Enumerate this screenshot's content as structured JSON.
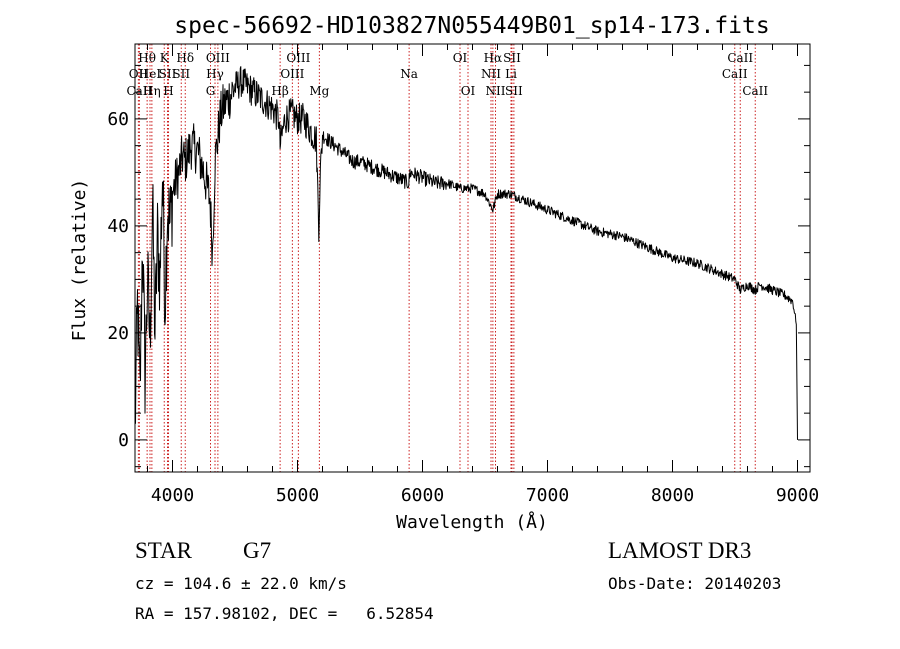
{
  "chart_data": {
    "type": "line",
    "title": "spec-56692-HD103827N055449B01_sp14-173.fits",
    "xlabel": "Wavelength (Å)",
    "ylabel": "Flux (relative)",
    "xlim": [
      3700,
      9100
    ],
    "ylim": [
      -6,
      74
    ],
    "xticks": [
      4000,
      5000,
      6000,
      7000,
      8000,
      9000
    ],
    "yticks": [
      0,
      20,
      40,
      60
    ],
    "x_minor_step": 200,
    "y_minor_step": 5,
    "grid": false,
    "colors": {
      "spectrum": "#000000",
      "lines": "#cc2222",
      "axes": "#000000"
    },
    "spectrum": {
      "name": "flux",
      "x": [
        3700,
        3720,
        3740,
        3760,
        3780,
        3800,
        3820,
        3840,
        3860,
        3880,
        3900,
        3920,
        3940,
        3960,
        3980,
        4000,
        4020,
        4050,
        4080,
        4100,
        4150,
        4200,
        4250,
        4300,
        4320,
        4340,
        4360,
        4380,
        4400,
        4450,
        4500,
        4550,
        4600,
        4650,
        4700,
        4750,
        4800,
        4850,
        4861,
        4900,
        4950,
        5000,
        5050,
        5100,
        5150,
        5170,
        5183,
        5200,
        5250,
        5300,
        5350,
        5400,
        5450,
        5500,
        5600,
        5700,
        5800,
        5890,
        5900,
        6000,
        6100,
        6200,
        6300,
        6400,
        6500,
        6563,
        6600,
        6700,
        6800,
        6900,
        7000,
        7200,
        7400,
        7600,
        7800,
        8000,
        8200,
        8400,
        8500,
        8542,
        8600,
        8662,
        8700,
        8800,
        8900,
        8960,
        8990,
        9000
      ],
      "y": [
        2,
        25,
        8,
        38,
        12,
        30,
        18,
        44,
        20,
        38,
        30,
        50,
        26,
        44,
        40,
        46,
        48,
        50,
        53,
        52,
        55,
        54,
        50,
        45,
        35,
        52,
        56,
        60,
        62,
        64,
        66,
        67,
        66,
        65,
        64,
        63,
        62,
        60,
        55,
        60,
        61,
        60,
        60,
        58,
        56,
        40,
        50,
        57,
        56,
        55,
        54,
        53,
        52,
        52,
        51,
        50,
        49,
        48,
        50,
        49,
        48,
        48,
        47,
        47,
        46,
        43,
        46,
        46,
        45,
        44,
        43,
        41,
        39,
        38,
        36,
        34,
        33,
        31,
        30,
        28,
        29,
        28,
        29,
        28,
        27,
        26,
        22,
        0
      ]
    },
    "spectral_lines": [
      {
        "label": "Hθ",
        "wavelength": 3797,
        "row": 1
      },
      {
        "label": "OII",
        "wavelength": 3727,
        "row": 2
      },
      {
        "label": "CaII",
        "wavelength": 3735,
        "row": 3
      },
      {
        "label": "HeI",
        "wavelength": 3820,
        "row": 2
      },
      {
        "label": "Hη",
        "wavelength": 3835,
        "row": 3
      },
      {
        "label": "K",
        "wavelength": 3934,
        "row": 1
      },
      {
        "label": "SII",
        "wavelength": 3960,
        "row": 2
      },
      {
        "label": "H",
        "wavelength": 3968,
        "row": 3
      },
      {
        "label": "Hδ",
        "wavelength": 4102,
        "row": 1
      },
      {
        "label": "SII",
        "wavelength": 4070,
        "row": 2
      },
      {
        "label": "OIII",
        "wavelength": 4363,
        "row": 1
      },
      {
        "label": "Hγ",
        "wavelength": 4340,
        "row": 2
      },
      {
        "label": "G",
        "wavelength": 4304,
        "row": 3
      },
      {
        "label": "Hβ",
        "wavelength": 4861,
        "row": 3
      },
      {
        "label": "OIII",
        "wavelength": 5007,
        "row": 1
      },
      {
        "label": "OIII",
        "wavelength": 4959,
        "row": 2
      },
      {
        "label": "Mg",
        "wavelength": 5175,
        "row": 3
      },
      {
        "label": "Na",
        "wavelength": 5893,
        "row": 2
      },
      {
        "label": "OI",
        "wavelength": 6300,
        "row": 1
      },
      {
        "label": "OI",
        "wavelength": 6364,
        "row": 3
      },
      {
        "label": "Hα",
        "wavelength": 6563,
        "row": 1
      },
      {
        "label": "SII",
        "wavelength": 6716,
        "row": 1
      },
      {
        "label": "NII",
        "wavelength": 6548,
        "row": 2
      },
      {
        "label": "Li",
        "wavelength": 6708,
        "row": 2
      },
      {
        "label": "NII",
        "wavelength": 6584,
        "row": 3
      },
      {
        "label": "SII",
        "wavelength": 6731,
        "row": 3
      },
      {
        "label": "CaII",
        "wavelength": 8542,
        "row": 1
      },
      {
        "label": "CaII",
        "wavelength": 8498,
        "row": 2
      },
      {
        "label": "CaII",
        "wavelength": 8662,
        "row": 3
      }
    ]
  },
  "info": {
    "class_label": "STAR",
    "subclass": "G7",
    "survey": "LAMOST DR3",
    "redshift": "cz = 104.6 ± 22.0 km/s",
    "obs_date": "Obs-Date: 20140203",
    "coords": "RA = 157.98102, DEC =   6.52854"
  }
}
